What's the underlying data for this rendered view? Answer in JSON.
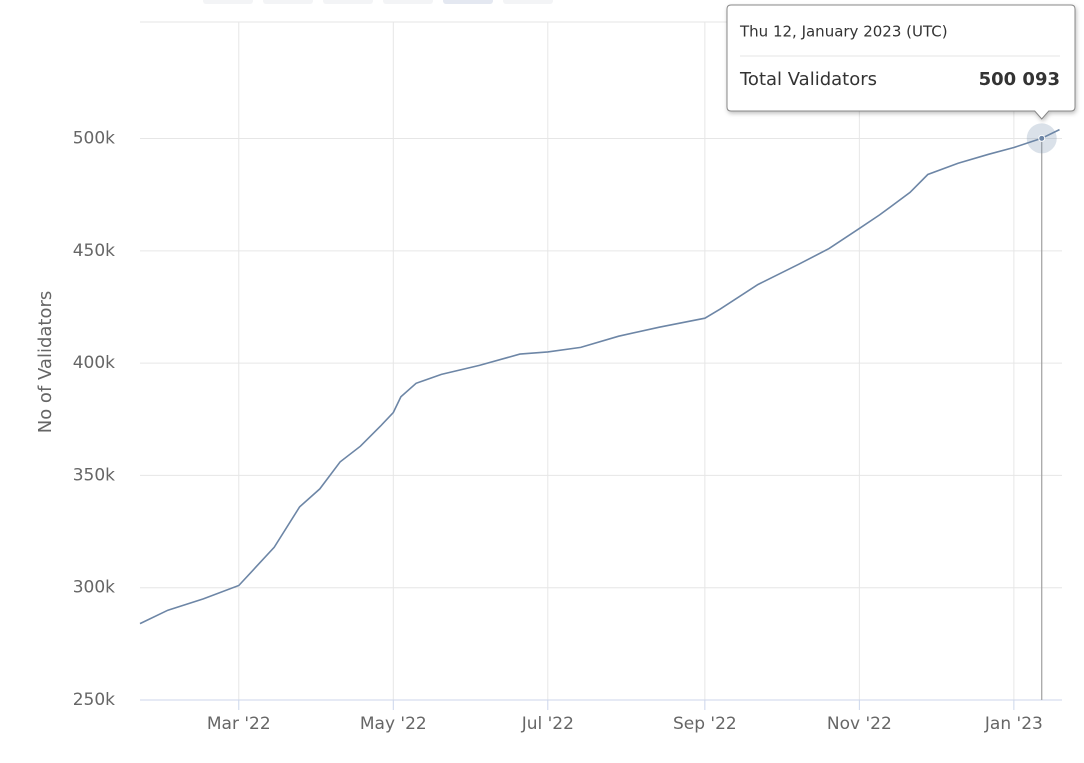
{
  "chart_data": {
    "type": "line",
    "y_label": "No of Validators",
    "x": [
      "2022-01-21",
      "2022-02-01",
      "2022-02-15",
      "2022-03-01",
      "2022-03-15",
      "2022-03-25",
      "2022-04-02",
      "2022-04-10",
      "2022-04-18",
      "2022-04-26",
      "2022-05-01",
      "2022-05-04",
      "2022-05-10",
      "2022-05-20",
      "2022-06-04",
      "2022-06-20",
      "2022-07-01",
      "2022-07-14",
      "2022-07-29",
      "2022-08-14",
      "2022-09-01",
      "2022-09-07",
      "2022-09-22",
      "2022-10-08",
      "2022-10-20",
      "2022-11-01",
      "2022-11-09",
      "2022-11-21",
      "2022-11-28",
      "2022-12-10",
      "2022-12-22",
      "2023-01-01",
      "2023-01-12",
      "2023-01-19"
    ],
    "series": [
      {
        "name": "Total Validators",
        "color": "#6d86a6",
        "values": [
          284000,
          290000,
          295000,
          301000,
          318000,
          336000,
          344000,
          356000,
          363000,
          372000,
          378000,
          385000,
          391000,
          395000,
          399000,
          404000,
          405000,
          407000,
          412000,
          416000,
          420000,
          424000,
          435000,
          444000,
          451000,
          460000,
          466000,
          476000,
          484000,
          489000,
          493000,
          496000,
          500093,
          504000
        ]
      }
    ],
    "xlim": [
      "2022-01-21",
      "2023-01-20"
    ],
    "xticks": [
      {
        "value": "2022-03-01",
        "label": "Mar '22"
      },
      {
        "value": "2022-05-01",
        "label": "May '22"
      },
      {
        "value": "2022-07-01",
        "label": "Jul '22"
      },
      {
        "value": "2022-09-01",
        "label": "Sep '22"
      },
      {
        "value": "2022-11-01",
        "label": "Nov '22"
      },
      {
        "value": "2023-01-01",
        "label": "Jan '23"
      }
    ],
    "ylim": [
      250000,
      551000
    ],
    "yticks": [
      {
        "value": 250000,
        "label": "250k"
      },
      {
        "value": 300000,
        "label": "300k"
      },
      {
        "value": 350000,
        "label": "350k"
      },
      {
        "value": 400000,
        "label": "400k"
      },
      {
        "value": 450000,
        "label": "450k"
      },
      {
        "value": 500000,
        "label": "500k"
      }
    ],
    "grid": true,
    "tooltip": {
      "x": "2023-01-12",
      "title": "Thu 12, January 2023 (UTC)",
      "value": 500093,
      "value_label": "500 093"
    }
  }
}
